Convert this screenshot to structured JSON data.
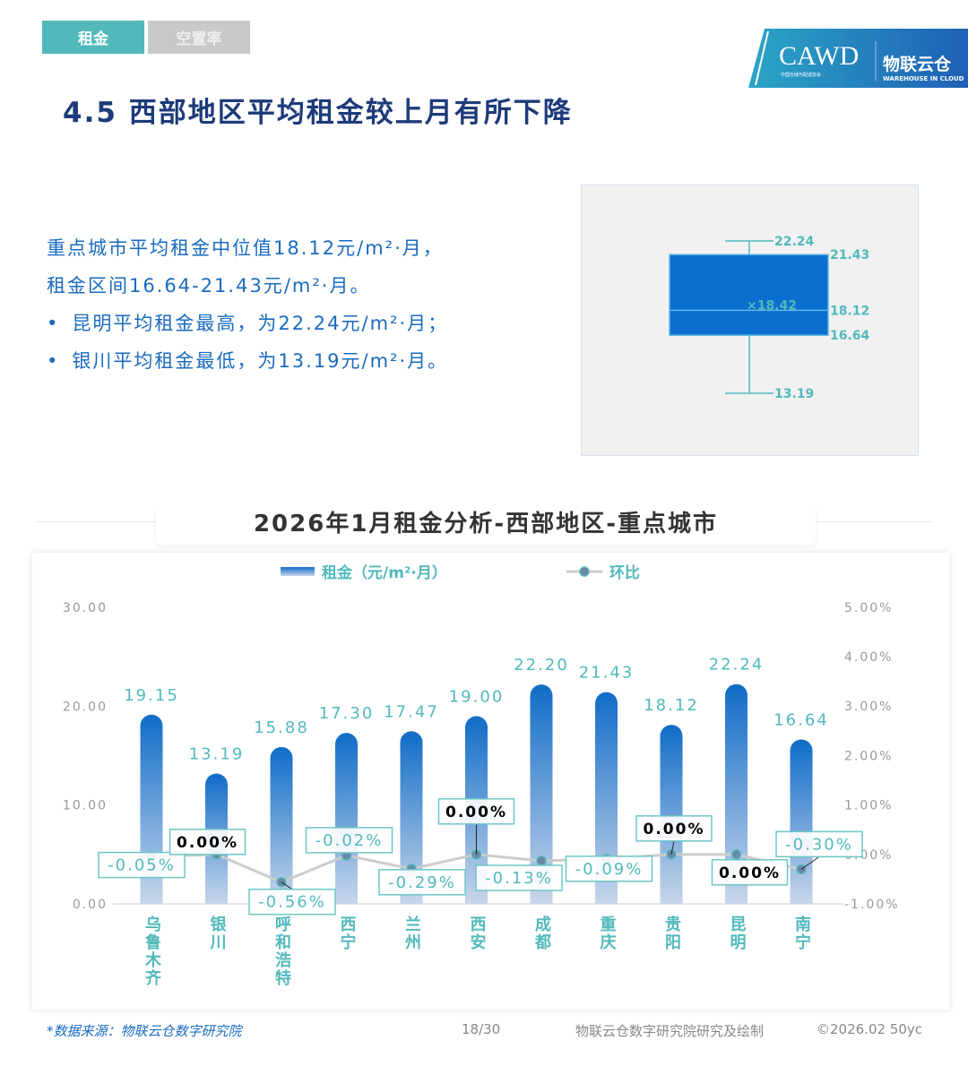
{
  "tabs": [
    {
      "label": "租金",
      "active": true
    },
    {
      "label": "空置率",
      "active": false
    }
  ],
  "logo": {
    "cawd": "CAWD",
    "cawd_sub_cn": "中国仓储与配送协会",
    "brand_cn": "物联云仓",
    "brand_en": "WAREHOUSE IN CLOUD"
  },
  "page_title": "4.5 西部地区平均租金较上月有所下降",
  "summary": {
    "line1": "重点城市平均租金中位值18.12元/m²·月，",
    "line2": "租金区间16.64-21.43元/m²·月。",
    "bullets": [
      "昆明平均租金最高，为22.24元/m²·月；",
      "银川平均租金最低，为13.19元/m²·月。"
    ]
  },
  "colors": {
    "accent": "#52b9bb",
    "bar_top": "#106cc8",
    "bar_bottom": "#c8d6ea",
    "title": "#1d3a7a",
    "text_blue": "#1a6bbf",
    "line": "#cccccc"
  },
  "chart_data": [
    {
      "type": "box",
      "max": 22.24,
      "q3": 21.43,
      "median": 18.12,
      "q1": 16.64,
      "min": 13.19,
      "mean": 18.42,
      "labels": {
        "max": "22.24",
        "q3": "21.43",
        "median": "18.12",
        "q1": "16.64",
        "min": "13.19",
        "mean": "×18.42"
      }
    },
    {
      "type": "bar+line",
      "title": "2026年1月租金分析-西部地区-重点城市",
      "categories": [
        "乌鲁木齐",
        "银川",
        "呼和浩特",
        "西宁",
        "兰州",
        "西安",
        "成都",
        "重庆",
        "贵阳",
        "昆明",
        "南宁"
      ],
      "series": [
        {
          "name": "租金（元/m²·月）",
          "type": "bar",
          "axis": "left",
          "values": [
            19.15,
            13.19,
            15.88,
            17.3,
            17.47,
            19.0,
            22.2,
            21.43,
            18.12,
            22.24,
            16.64
          ],
          "labels": [
            "19.15",
            "13.19",
            "15.88",
            "17.30",
            "17.47",
            "19.00",
            "22.20",
            "21.43",
            "18.12",
            "22.24",
            "16.64"
          ]
        },
        {
          "name": "环比",
          "type": "line",
          "axis": "right",
          "values": [
            -0.05,
            0.0,
            -0.56,
            -0.02,
            -0.29,
            0.0,
            -0.13,
            -0.09,
            0.0,
            0.0,
            -0.3
          ],
          "labels": [
            "-0.05%",
            "0.00%",
            "-0.56%",
            "-0.02%",
            "-0.29%",
            "0.00%",
            "-0.13%",
            "-0.09%",
            "0.00%",
            "0.00%",
            "-0.30%"
          ]
        }
      ],
      "y_left": {
        "range": [
          0,
          30
        ],
        "ticks": [
          "0.00",
          "10.00",
          "20.00",
          "30.00"
        ]
      },
      "y_right": {
        "range": [
          -1,
          5
        ],
        "ticks": [
          "-1.00%",
          "0.00%",
          "1.00%",
          "2.00%",
          "3.00%",
          "4.00%",
          "5.00%"
        ]
      },
      "legend_position": "top",
      "grid": false
    }
  ],
  "footer": {
    "source": "*数据来源：物联云仓数字研究院",
    "page": "18/30",
    "credit": "物联云仓数字研究院研究及绘制",
    "copyright": "©2026.02 50yc"
  }
}
